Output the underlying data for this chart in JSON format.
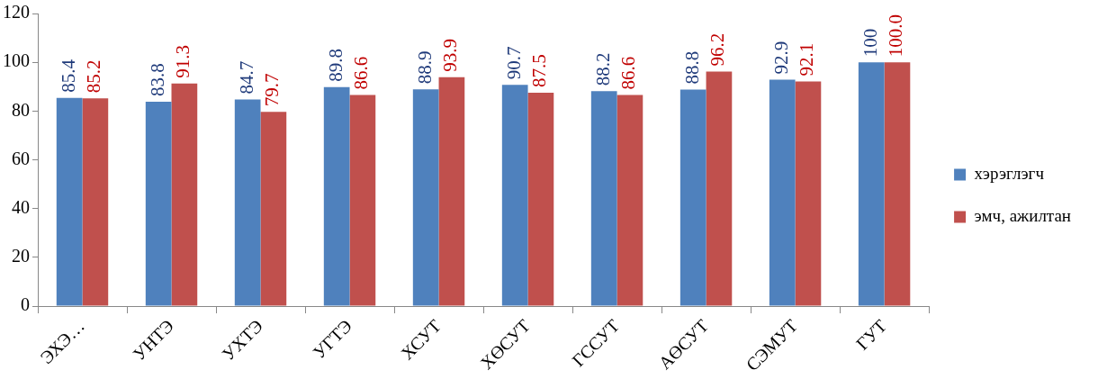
{
  "chart_data": {
    "type": "bar",
    "categories": [
      "ЭХЭ…",
      "УНТЭ",
      "УХТЭ",
      "УГТЭ",
      "ХСУТ",
      "ХӨСУТ",
      "ГССУТ",
      "АӨСУТ",
      "СЭМУТ",
      "ГУТ"
    ],
    "series": [
      {
        "name": "хэрэглэгч",
        "color": "#4f81bd",
        "values": [
          85.4,
          83.8,
          84.7,
          89.8,
          88.9,
          90.7,
          88.2,
          88.8,
          92.9,
          100
        ],
        "value_labels": [
          "85.4",
          "83.8",
          "84.7",
          "89.8",
          "88.9",
          "90.7",
          "88.2",
          "88.8",
          "92.9",
          "100"
        ]
      },
      {
        "name": "эмч, ажилтан",
        "color": "#c0504d",
        "values": [
          85.2,
          91.3,
          79.7,
          86.6,
          93.9,
          87.5,
          86.6,
          96.2,
          92.1,
          100.0
        ],
        "value_labels": [
          "85.2",
          "91.3",
          "79.7",
          "86.6",
          "93.9",
          "87.5",
          "86.6",
          "96.2",
          "92.1",
          "100.0"
        ]
      }
    ],
    "ylim": [
      0,
      120
    ],
    "yticks": [
      0,
      20,
      40,
      60,
      80,
      100,
      120
    ],
    "grid": false,
    "legend": "right"
  }
}
